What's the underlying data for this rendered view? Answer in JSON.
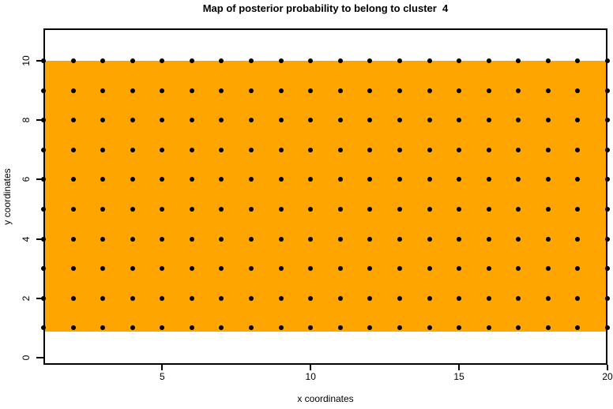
{
  "chart_data": {
    "type": "scatter",
    "title": "Map of posterior probability to belong to cluster  4",
    "xlabel": "x coordinates",
    "ylabel": "y coordinates",
    "x_ticks": [
      5,
      10,
      15,
      20
    ],
    "y_ticks": [
      0,
      2,
      4,
      6,
      8,
      10
    ],
    "xlim": [
      1,
      20
    ],
    "ylim": [
      -0.3,
      11.1
    ],
    "grid": false,
    "legend": "none",
    "background_region": {
      "shape": "rect",
      "x_range": [
        1,
        20
      ],
      "y_range": [
        1,
        10
      ],
      "fill": "#FFA500"
    },
    "points": {
      "marker": "filled-circle",
      "color": "#000000",
      "arrangement": "cartesian-grid: one point at every (x, y) combination",
      "x_values": [
        1,
        2,
        3,
        4,
        5,
        6,
        7,
        8,
        9,
        10,
        11,
        12,
        13,
        14,
        15,
        16,
        17,
        18,
        19,
        20
      ],
      "y_values": [
        1,
        2,
        3,
        4,
        5,
        6,
        7,
        8,
        9,
        10
      ],
      "count": 200
    }
  },
  "colors": {
    "region_fill": "#FFA500",
    "points": "#000000",
    "axis": "#000000",
    "background": "#FFFFFF",
    "title_text": "#000000"
  }
}
